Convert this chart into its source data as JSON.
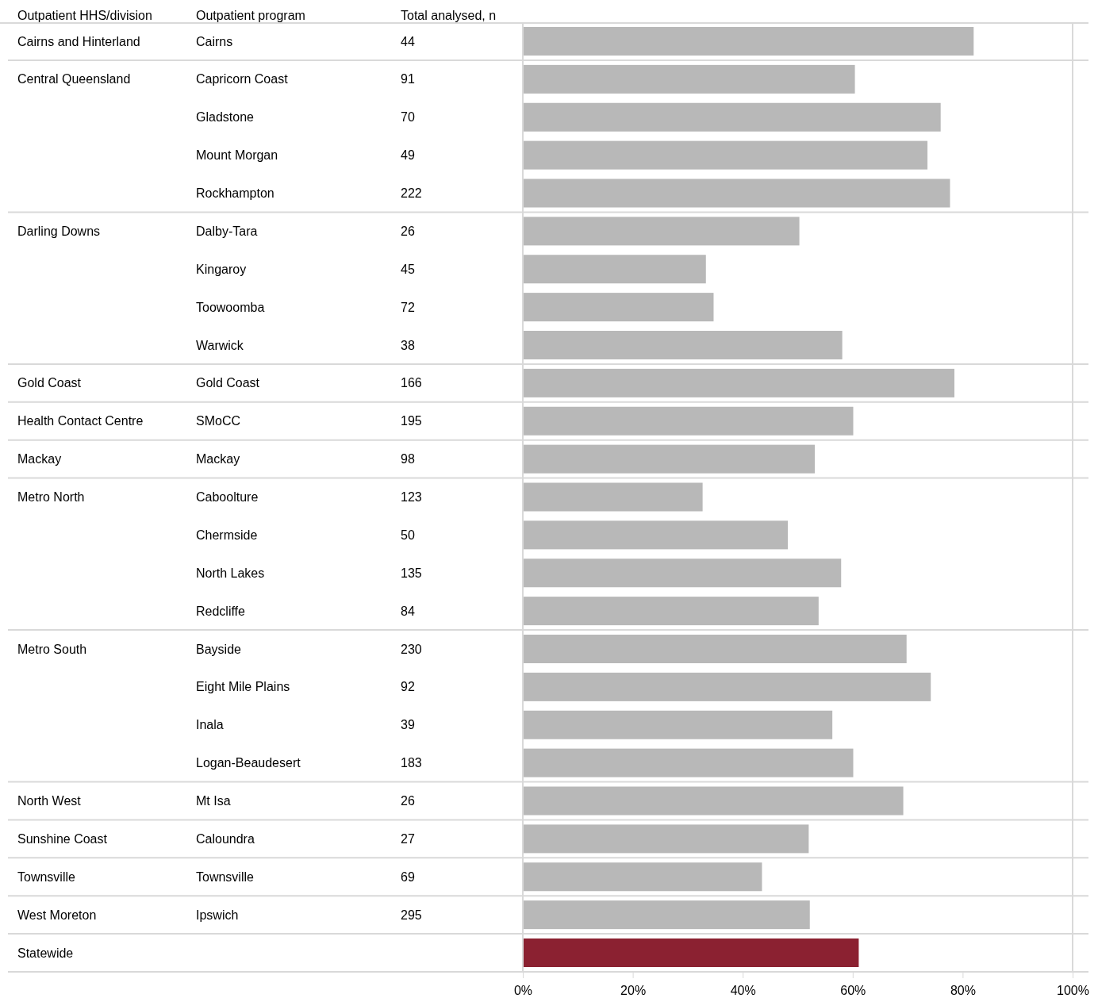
{
  "chart_data": [
    {
      "type": "other",
      "annotations": [
        "Outpatient HHS/division",
        "Outpatient program",
        "Total analysed, n"
      ],
      "y_categories": [
        "Cairns and Hinterland",
        "Central Queensland",
        null,
        null,
        null,
        "Darling Downs",
        null,
        null,
        null,
        "Gold Coast",
        "Health Contact Centre",
        "Mackay",
        "Metro North",
        null,
        null,
        null,
        "Metro South",
        null,
        null,
        null,
        "North West",
        "Sunshine Coast",
        "Townsville",
        "West Moreton",
        "Statewide"
      ],
      "categories": [
        "Cairns",
        "Capricorn Coast",
        "Gladstone",
        "Mount Morgan",
        "Rockhampton",
        "Dalby-Tara",
        "Kingaroy",
        "Toowoomba",
        "Warwick",
        "Gold Coast",
        "SMoCC",
        "Mackay",
        "Caboolture",
        "Chermside",
        "North Lakes",
        "Redcliffe",
        "Bayside",
        "Eight Mile Plains",
        "Inala",
        "Logan-Beaudesert",
        "Mt Isa",
        "Caloundra",
        "Townsville",
        "Ipswich",
        null
      ],
      "values": [
        44,
        91,
        70,
        49,
        222,
        26,
        45,
        72,
        38,
        166,
        195,
        98,
        123,
        50,
        135,
        84,
        230,
        92,
        39,
        183,
        26,
        27,
        69,
        295,
        null
      ],
      "data_labels": true
    },
    {
      "type": "bar",
      "orientation": "horizontal",
      "categories": [
        null,
        null,
        null,
        null,
        null,
        null,
        null,
        null,
        null,
        null,
        null,
        null,
        null,
        null,
        null,
        null,
        null,
        null,
        null,
        null,
        null,
        null,
        null,
        null,
        null
      ],
      "values": [
        82.0,
        60.4,
        76.0,
        73.6,
        77.7,
        50.3,
        33.3,
        34.7,
        58.1,
        78.5,
        60.1,
        53.1,
        32.7,
        48.2,
        57.9,
        53.8,
        69.8,
        74.2,
        56.3,
        60.1,
        69.2,
        52.0,
        43.5,
        52.2,
        61.1
      ],
      "colors": [
        "#b8b8b8",
        "#b8b8b8",
        "#b8b8b8",
        "#b8b8b8",
        "#b8b8b8",
        "#b8b8b8",
        "#b8b8b8",
        "#b8b8b8",
        "#b8b8b8",
        "#b8b8b8",
        "#b8b8b8",
        "#b8b8b8",
        "#b8b8b8",
        "#b8b8b8",
        "#b8b8b8",
        "#b8b8b8",
        "#b8b8b8",
        "#b8b8b8",
        "#b8b8b8",
        "#b8b8b8",
        "#b8b8b8",
        "#b8b8b8",
        "#b8b8b8",
        "#b8b8b8",
        "#8b2131"
      ],
      "xlim": [
        0,
        100
      ],
      "xticks": [
        {
          "value": 0,
          "label": "0%"
        },
        {
          "value": 20,
          "label": "20%"
        },
        {
          "value": 40,
          "label": "40%"
        },
        {
          "value": 60,
          "label": "60%"
        },
        {
          "value": 80,
          "label": "80%"
        },
        {
          "value": 100,
          "label": "100%"
        }
      ]
    }
  ]
}
